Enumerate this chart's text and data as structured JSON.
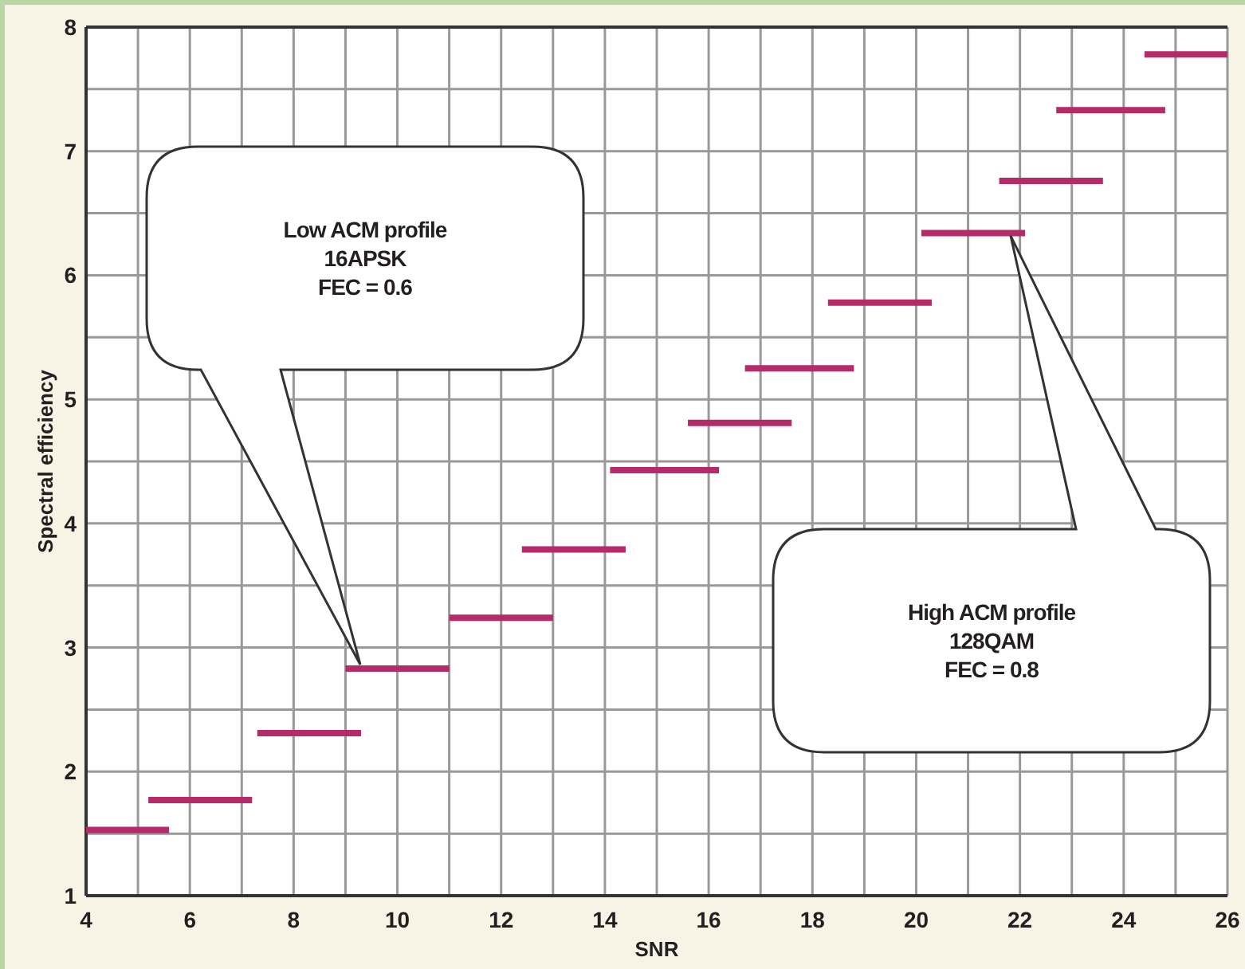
{
  "chart_data": {
    "type": "line",
    "xlabel": "SNR",
    "ylabel": "Spectral efficiency",
    "xlim": [
      4,
      26
    ],
    "ylim": [
      1,
      8
    ],
    "xticks": [
      4,
      {
        "value": 5,
        "label": null
      },
      6,
      {
        "value": 7,
        "label": null
      },
      8,
      {
        "value": 9,
        "label": null
      },
      10,
      {
        "value": 11,
        "label": null
      },
      12,
      {
        "value": 13,
        "label": null
      },
      14,
      {
        "value": 15,
        "label": null
      },
      16,
      {
        "value": 17,
        "label": null
      },
      18,
      {
        "value": 19,
        "label": null
      },
      20,
      {
        "value": 21,
        "label": null
      },
      22,
      {
        "value": 23,
        "label": null
      },
      24,
      {
        "value": 25,
        "label": null
      },
      26
    ],
    "yticks": [
      1,
      {
        "value": 1.5,
        "label": null
      },
      2,
      {
        "value": 2.5,
        "label": null
      },
      3,
      {
        "value": 3.5,
        "label": null
      },
      4,
      {
        "value": 4.5,
        "label": null
      },
      5,
      {
        "value": 5.5,
        "label": null
      },
      6,
      {
        "value": 6.5,
        "label": null
      },
      7,
      {
        "value": 7.5,
        "label": null
      },
      8
    ],
    "grid": true,
    "marker": "none",
    "line_style": "solid",
    "series": [
      {
        "color": "#b52a68",
        "x": [
          4.0,
          5.6
        ],
        "values": [
          1.53,
          1.53
        ]
      },
      {
        "color": "#b52a68",
        "x": [
          5.2,
          7.2
        ],
        "values": [
          1.77,
          1.77
        ]
      },
      {
        "color": "#b52a68",
        "x": [
          7.3,
          9.3
        ],
        "values": [
          2.31,
          2.31
        ]
      },
      {
        "color": "#b52a68",
        "x": [
          9.0,
          11.0
        ],
        "values": [
          2.83,
          2.83
        ]
      },
      {
        "color": "#b52a68",
        "x": [
          11.0,
          13.0
        ],
        "values": [
          3.24,
          3.24
        ]
      },
      {
        "color": "#b52a68",
        "x": [
          12.4,
          14.4
        ],
        "values": [
          3.79,
          3.79
        ]
      },
      {
        "color": "#b52a68",
        "x": [
          14.1,
          16.2
        ],
        "values": [
          4.43,
          4.43
        ]
      },
      {
        "color": "#b52a68",
        "x": [
          15.6,
          17.6
        ],
        "values": [
          4.81,
          4.81
        ]
      },
      {
        "color": "#b52a68",
        "x": [
          16.7,
          18.8
        ],
        "values": [
          5.25,
          5.25
        ]
      },
      {
        "color": "#b52a68",
        "x": [
          18.3,
          20.3
        ],
        "values": [
          5.78,
          5.78
        ]
      },
      {
        "color": "#b52a68",
        "x": [
          20.1,
          22.1
        ],
        "values": [
          6.34,
          6.34
        ]
      },
      {
        "color": "#b52a68",
        "x": [
          21.6,
          23.6
        ],
        "values": [
          6.76,
          6.76
        ]
      },
      {
        "color": "#b52a68",
        "x": [
          22.7,
          24.8
        ],
        "values": [
          7.33,
          7.33
        ]
      },
      {
        "color": "#b52a68",
        "x": [
          24.4,
          26.0
        ],
        "values": [
          7.78,
          7.78
        ]
      }
    ],
    "annotations": [
      "Low ACM profile\n16APSK\nFEC = 0.6",
      "High ACM profile\n128QAM\nFEC = 0.8"
    ]
  }
}
